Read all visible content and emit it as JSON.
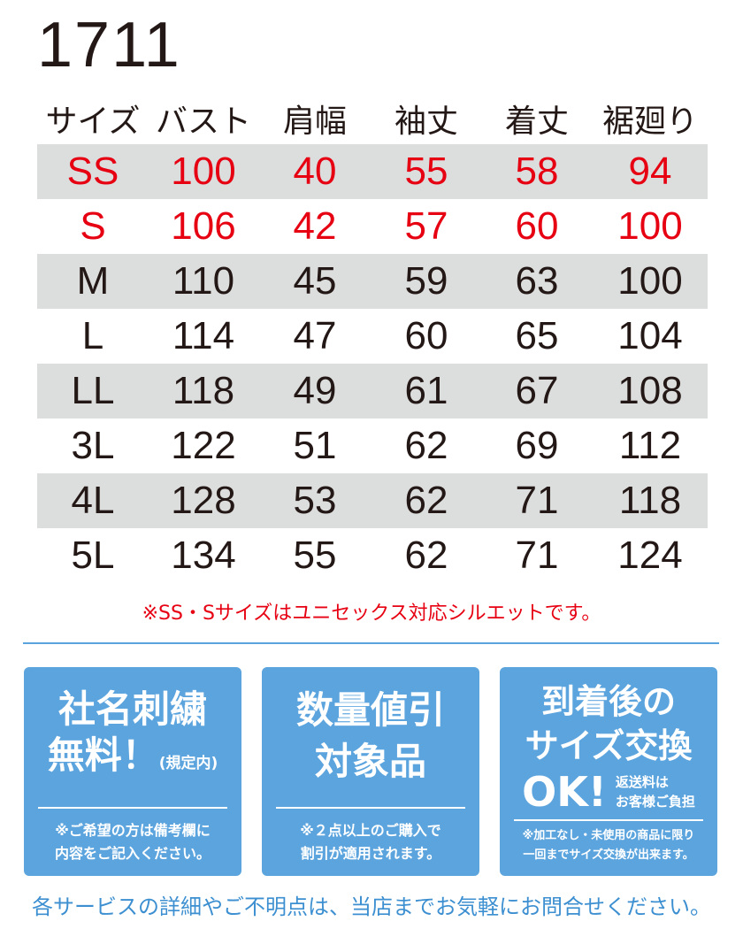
{
  "title": "1711",
  "table": {
    "headers": [
      "サイズ",
      "バスト",
      "肩幅",
      "袖丈",
      "着丈",
      "裾廻り"
    ],
    "rows": [
      [
        "SS",
        "100",
        "40",
        "55",
        "58",
        "94"
      ],
      [
        "S",
        "106",
        "42",
        "57",
        "60",
        "100"
      ],
      [
        "M",
        "110",
        "45",
        "59",
        "63",
        "100"
      ],
      [
        "L",
        "114",
        "47",
        "60",
        "65",
        "104"
      ],
      [
        "LL",
        "118",
        "49",
        "61",
        "67",
        "108"
      ],
      [
        "3L",
        "122",
        "51",
        "62",
        "69",
        "112"
      ],
      [
        "4L",
        "128",
        "53",
        "62",
        "71",
        "118"
      ],
      [
        "5L",
        "134",
        "55",
        "62",
        "71",
        "124"
      ]
    ]
  },
  "note": "※SS・Sサイズはユニセックス対応シルエットです。",
  "colors": {
    "red": "#e60012",
    "blue": "#5ca4de",
    "gray": "#dcdddd"
  },
  "boxes": [
    {
      "line1": "社名刺繍",
      "line2": "無料！",
      "line2_small": "(規定内)",
      "sub1": "※ご希望の方は備考欄に",
      "sub2": "内容をご記入ください。"
    },
    {
      "line1": "数量値引",
      "line2": "対象品",
      "sub1": "※２点以上のご購入で",
      "sub2": "割引が適用されます。"
    },
    {
      "line1": "到着後の",
      "line2": "サイズ交換",
      "line3": "OK!",
      "side1": "返送料は",
      "side2": "お客様ご負担",
      "sub1": "※加工なし・未使用の商品に限り",
      "sub2": "一回までサイズ交換が出来ます。"
    }
  ],
  "footer": "各サービスの詳細やご不明点は、当店までお気軽にお問合せください。"
}
